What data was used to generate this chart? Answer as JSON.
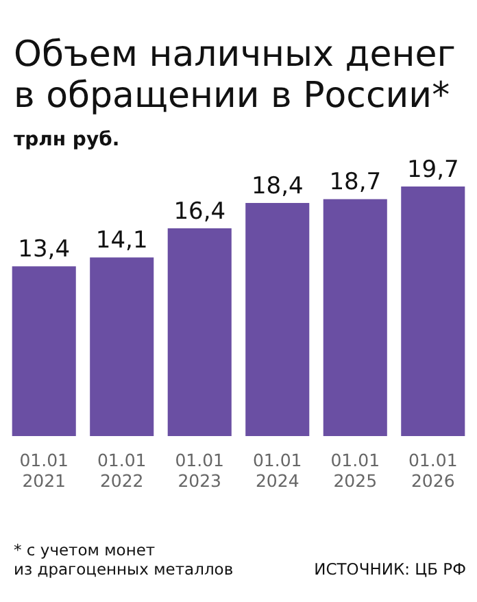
{
  "chart_data": {
    "type": "bar",
    "title": "Объем наличных денег\nв обращении в России*",
    "subtitle": "трлн руб.",
    "categories": [
      "01.01\n2021",
      "01.01\n2022",
      "01.01\n2023",
      "01.01\n2024",
      "01.01\n2025",
      "01.01\n2026"
    ],
    "values": [
      13.4,
      14.1,
      16.4,
      18.4,
      18.7,
      19.7
    ],
    "value_labels": [
      "13,4",
      "14,1",
      "16,4",
      "18,4",
      "18,7",
      "19,7"
    ],
    "color": "#6a4fa3",
    "annotations": [
      "* с учетом монет\nиз драгоценных металлов",
      "ИСТОЧНИК: ЦБ РФ"
    ]
  }
}
